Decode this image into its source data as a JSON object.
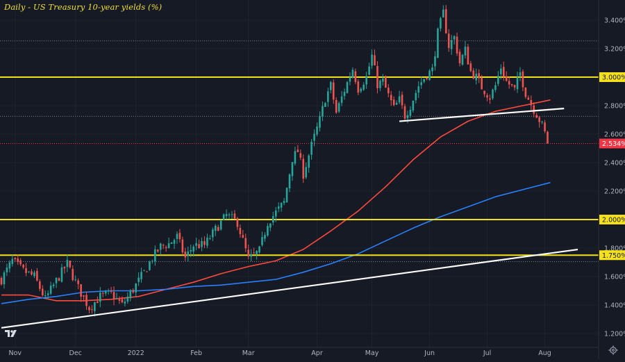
{
  "chart_data": {
    "type": "candlestick",
    "title": "Daily - US Treasury 10-year yields (%)",
    "xlabel": "",
    "ylabel": "",
    "ylim": [
      1.12,
      3.55
    ],
    "x_ticks": [
      {
        "label": "Nov",
        "index": 5
      },
      {
        "label": "Dec",
        "index": 27
      },
      {
        "label": "2022",
        "index": 49
      },
      {
        "label": "Feb",
        "index": 71
      },
      {
        "label": "Mar",
        "index": 90
      },
      {
        "label": "Apr",
        "index": 115
      },
      {
        "label": "May",
        "index": 135
      },
      {
        "label": "Jun",
        "index": 156
      },
      {
        "label": "Jul",
        "index": 177
      },
      {
        "label": "Aug",
        "index": 198
      }
    ],
    "y_ticks": [
      {
        "label": "3.400%",
        "value": 3.4
      },
      {
        "label": "3.200%",
        "value": 3.2
      },
      {
        "label": "2.800%",
        "value": 2.8
      },
      {
        "label": "2.600%",
        "value": 2.6
      },
      {
        "label": "2.400%",
        "value": 2.4
      },
      {
        "label": "2.200%",
        "value": 2.2
      },
      {
        "label": "1.800%",
        "value": 1.8
      },
      {
        "label": "1.600%",
        "value": 1.6
      },
      {
        "label": "1.400%",
        "value": 1.4
      },
      {
        "label": "1.200%",
        "value": 1.2
      }
    ],
    "horizontal_levels": [
      {
        "label": "3.000%",
        "value": 3.0,
        "color": "#f5e11b"
      },
      {
        "label": "2.000%",
        "value": 2.0,
        "color": "#f5e11b"
      },
      {
        "label": "1.750%",
        "value": 1.75,
        "color": "#f5e11b"
      }
    ],
    "dotted_levels": [
      3.255,
      2.725,
      1.705
    ],
    "last_price": {
      "label": "2.534%",
      "value": 2.534,
      "color": "#f23645"
    },
    "trendlines": [
      {
        "name": "support-trendline-long",
        "start": {
          "index": 0,
          "value": 1.24
        },
        "end": {
          "index": 210,
          "value": 1.79
        },
        "color": "#ffffff"
      },
      {
        "name": "neckline-trendline",
        "start": {
          "index": 145,
          "value": 2.69
        },
        "end": {
          "index": 205,
          "value": 2.78
        },
        "color": "#ffffff"
      }
    ],
    "series": [
      {
        "name": "MA (red)",
        "color": "#ff4a3d",
        "points": [
          [
            0,
            1.47
          ],
          [
            10,
            1.47
          ],
          [
            20,
            1.43
          ],
          [
            30,
            1.43
          ],
          [
            40,
            1.44
          ],
          [
            50,
            1.46
          ],
          [
            60,
            1.51
          ],
          [
            70,
            1.56
          ],
          [
            80,
            1.62
          ],
          [
            90,
            1.67
          ],
          [
            100,
            1.71
          ],
          [
            110,
            1.79
          ],
          [
            120,
            1.92
          ],
          [
            130,
            2.06
          ],
          [
            140,
            2.23
          ],
          [
            150,
            2.42
          ],
          [
            160,
            2.58
          ],
          [
            170,
            2.69
          ],
          [
            180,
            2.76
          ],
          [
            190,
            2.8
          ],
          [
            200,
            2.84
          ]
        ]
      },
      {
        "name": "MA (blue)",
        "color": "#2a80ff",
        "points": [
          [
            0,
            1.41
          ],
          [
            10,
            1.44
          ],
          [
            20,
            1.46
          ],
          [
            30,
            1.49
          ],
          [
            40,
            1.5
          ],
          [
            50,
            1.5
          ],
          [
            60,
            1.51
          ],
          [
            70,
            1.53
          ],
          [
            80,
            1.54
          ],
          [
            90,
            1.56
          ],
          [
            100,
            1.58
          ],
          [
            110,
            1.63
          ],
          [
            120,
            1.69
          ],
          [
            130,
            1.76
          ],
          [
            140,
            1.85
          ],
          [
            150,
            1.94
          ],
          [
            160,
            2.02
          ],
          [
            170,
            2.09
          ],
          [
            180,
            2.16
          ],
          [
            190,
            2.21
          ],
          [
            200,
            2.26
          ]
        ]
      }
    ],
    "close_path": [
      [
        0,
        1.58
      ],
      [
        4,
        1.71
      ],
      [
        8,
        1.64
      ],
      [
        12,
        1.6
      ],
      [
        16,
        1.44
      ],
      [
        20,
        1.57
      ],
      [
        24,
        1.69
      ],
      [
        28,
        1.52
      ],
      [
        32,
        1.38
      ],
      [
        36,
        1.46
      ],
      [
        40,
        1.48
      ],
      [
        44,
        1.4
      ],
      [
        48,
        1.51
      ],
      [
        52,
        1.63
      ],
      [
        55,
        1.73
      ],
      [
        58,
        1.81
      ],
      [
        61,
        1.83
      ],
      [
        64,
        1.88
      ],
      [
        67,
        1.73
      ],
      [
        70,
        1.82
      ],
      [
        74,
        1.82
      ],
      [
        78,
        1.93
      ],
      [
        82,
        2.03
      ],
      [
        86,
        1.98
      ],
      [
        90,
        1.72
      ],
      [
        94,
        1.78
      ],
      [
        97,
        1.98
      ],
      [
        100,
        2.05
      ],
      [
        103,
        2.12
      ],
      [
        106,
        2.43
      ],
      [
        108,
        2.48
      ],
      [
        110,
        2.32
      ],
      [
        113,
        2.52
      ],
      [
        116,
        2.7
      ],
      [
        118,
        2.85
      ],
      [
        120,
        2.94
      ],
      [
        122,
        2.75
      ],
      [
        125,
        2.91
      ],
      [
        128,
        3.06
      ],
      [
        130,
        2.92
      ],
      [
        133,
        3.0
      ],
      [
        135,
        3.15
      ],
      [
        137,
        2.95
      ],
      [
        139,
        2.97
      ],
      [
        141,
        2.87
      ],
      [
        143,
        2.78
      ],
      [
        145,
        2.84
      ],
      [
        147,
        2.73
      ],
      [
        149,
        2.8
      ],
      [
        152,
        2.94
      ],
      [
        155,
        3.02
      ],
      [
        157,
        3.05
      ],
      [
        159,
        3.31
      ],
      [
        161,
        3.45
      ],
      [
        163,
        3.22
      ],
      [
        165,
        3.28
      ],
      [
        167,
        3.1
      ],
      [
        169,
        3.19
      ],
      [
        171,
        3.04
      ],
      [
        173,
        3.0
      ],
      [
        175,
        2.93
      ],
      [
        178,
        2.86
      ],
      [
        180,
        2.94
      ],
      [
        182,
        3.07
      ],
      [
        184,
        2.97
      ],
      [
        187,
        2.91
      ],
      [
        189,
        3.03
      ],
      [
        191,
        2.89
      ],
      [
        193,
        2.81
      ],
      [
        195,
        2.74
      ],
      [
        197,
        2.66
      ],
      [
        199,
        2.55
      ]
    ]
  },
  "ui": {
    "logo": "TV",
    "settings_icon": "gear-icon"
  }
}
